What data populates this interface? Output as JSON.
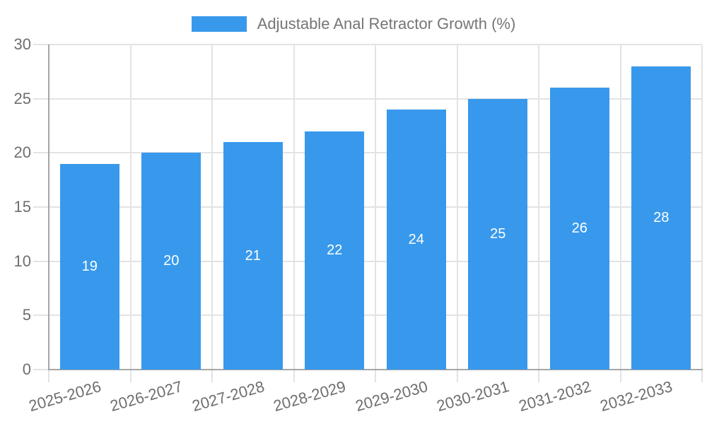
{
  "chart_data": {
    "type": "bar",
    "title": "Adjustable Anal Retractor Growth (%)",
    "categories": [
      "2025-2026",
      "2026-2027",
      "2027-2028",
      "2028-2029",
      "2029-2030",
      "2030-2031",
      "2031-2032",
      "2032-2033"
    ],
    "values": [
      19,
      20,
      21,
      22,
      24,
      25,
      26,
      28
    ],
    "yticks": [
      0,
      5,
      10,
      15,
      20,
      25,
      30
    ],
    "ylim": [
      0,
      30
    ],
    "grid": true,
    "legend_position": "top-center",
    "colors": {
      "bar": "#3899ec",
      "value_label": "#ffffff",
      "grid_line": "#e3e3e3",
      "axis_line": "#a6a6a6",
      "axis_text": "#6e6e6e",
      "legend_text": "#757575",
      "background": "#ffffff"
    }
  }
}
